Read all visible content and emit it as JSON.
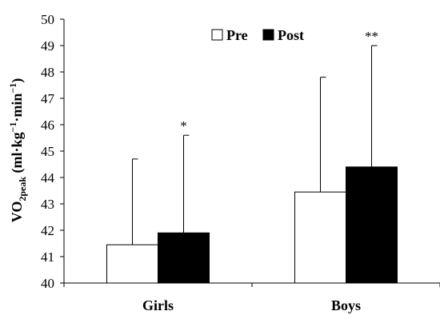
{
  "chart_data": {
    "type": "bar",
    "categories": [
      "Girls",
      "Boys"
    ],
    "series": [
      {
        "name": "Pre",
        "color": "#ffffff",
        "values": [
          41.45,
          43.45
        ],
        "error_upper": [
          44.7,
          47.8
        ]
      },
      {
        "name": "Post",
        "color": "#000000",
        "values": [
          41.9,
          44.4
        ],
        "error_upper": [
          45.6,
          49.0
        ]
      }
    ],
    "annotations": [
      {
        "category": "Girls",
        "series": "Post",
        "text": "*"
      },
      {
        "category": "Boys",
        "series": "Post",
        "text": "**"
      }
    ],
    "ylabel": {
      "main": "VO",
      "sub": "2peak",
      "units": " (ml·kg",
      "exp1": "−1",
      "mid": "·min",
      "exp2": "−1",
      "close": ")"
    },
    "ylim": [
      40,
      50
    ],
    "yticks": [
      "40",
      "41",
      "42",
      "43",
      "44",
      "45",
      "46",
      "47",
      "48",
      "49",
      "50"
    ],
    "grid": false,
    "legend_position": "top"
  }
}
